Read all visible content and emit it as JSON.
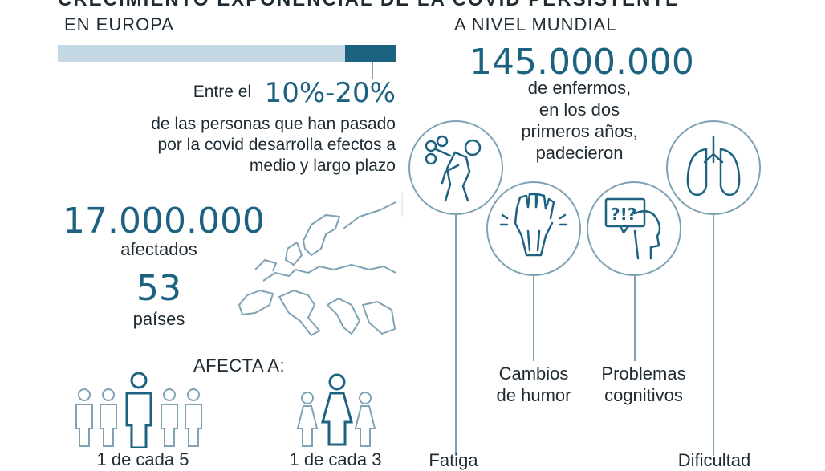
{
  "top_title": "CRECIMIENTO EXPONENCIAL DE LA COVID PERSISTENTE",
  "europe": {
    "heading": "EN EUROPA",
    "bar_share": [
      0.1,
      0.2
    ],
    "pct_prefix": "Entre el",
    "pct_value": "10%-20%",
    "description": [
      "de las personas que han pasado",
      "por la covid desarrolla efectos a",
      "medio y largo plazo"
    ],
    "affected_number": "17.000.000",
    "affected_label": "afectados",
    "countries_number": "53",
    "countries_label": "países",
    "affects_heading": "AFECTA A:",
    "men_ratio": "1 de cada 5",
    "women_ratio": "1 de cada 3"
  },
  "world": {
    "heading": "A NIVEL MUNDIAL",
    "number": "145.000.000",
    "description": [
      "de enfermos,",
      "en los dos",
      "primeros años,",
      "padecieron"
    ],
    "symptoms": [
      {
        "label": "Fatiga",
        "icon": "fatigue-icon"
      },
      {
        "label_lines": [
          "Cambios",
          "de humor"
        ],
        "icon": "mood-icon"
      },
      {
        "label_lines": [
          "Problemas",
          "cognitivos"
        ],
        "icon": "cognitive-icon"
      },
      {
        "label": "Dificultad",
        "icon": "lungs-icon"
      }
    ]
  },
  "colors": {
    "teal": "#1d6280",
    "light_blue": "#c4d9e3",
    "outline": "#7fa2b4"
  }
}
